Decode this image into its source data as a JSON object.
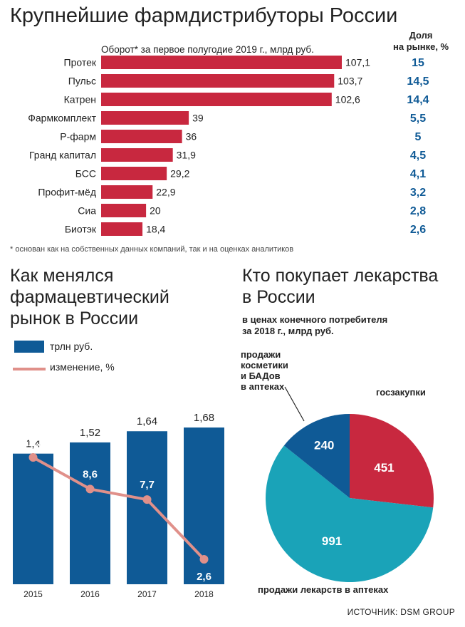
{
  "header": {
    "title": "Крупнейшие фармдистрибуторы России",
    "subtitle": "Оборот* за первое полугодие 2019 г., млрд руб.",
    "share_heading_line1": "Доля",
    "share_heading_line2": "на рынке, %",
    "footnote": "* основан как на собственных данных компаний, так и на оценках аналитиков"
  },
  "market_section": {
    "title_line1": "Как менялся",
    "title_line2": "фармацевтический",
    "title_line3": "рынок в России",
    "legend_bar": "трлн руб.",
    "legend_line": "изменение, %"
  },
  "buyers_section": {
    "title_line1": "Кто покупает лекарства",
    "title_line2": "в России",
    "subtitle_line1": "в ценах конечного потребителя",
    "subtitle_line2": "за 2018 г., млрд руб."
  },
  "source": "ИСТОЧНИК: DSM GROUP",
  "colors": {
    "red": "#c8283f",
    "blue": "#0f5a96",
    "teal": "#1aa3b8",
    "line": "#e0908a",
    "share_text": "#0f5a96"
  },
  "chart_data": [
    {
      "type": "bar",
      "orientation": "horizontal",
      "title": "Крупнейшие фармдистрибуторы России",
      "subtitle": "Оборот* за первое полугодие 2019 г., млрд руб.",
      "categories": [
        "Протек",
        "Пульс",
        "Катрен",
        "Фармкомплект",
        "Р-фарм",
        "Гранд капитал",
        "БСС",
        "Профит-мёд",
        "Сиа",
        "Биотэк"
      ],
      "values": [
        107.1,
        103.7,
        102.6,
        39,
        36,
        31.9,
        29.2,
        22.9,
        20,
        18.4
      ],
      "value_labels": [
        "107,1",
        "103,7",
        "102,6",
        "39",
        "36",
        "31,9",
        "29,2",
        "22,9",
        "20",
        "18,4"
      ],
      "market_share_labels": [
        "15",
        "14,5",
        "14,4",
        "5,5",
        "5",
        "4,5",
        "4,1",
        "3,2",
        "2,8",
        "2,6"
      ],
      "market_share_values": [
        15,
        14.5,
        14.4,
        5.5,
        5,
        4.5,
        4.1,
        3.2,
        2.8,
        2.6
      ],
      "grid": false
    },
    {
      "type": "bar",
      "title": "Как менялся фармацевтический рынок в России",
      "categories": [
        "2015",
        "2016",
        "2017",
        "2018"
      ],
      "series": [
        {
          "name": "трлн руб.",
          "type": "bar",
          "values": [
            1.4,
            1.52,
            1.64,
            1.68
          ],
          "labels": [
            "1,4",
            "1,52",
            "1,64",
            "1,68"
          ]
        },
        {
          "name": "изменение, %",
          "type": "line",
          "values": [
            11.3,
            8.6,
            7.7,
            2.6
          ],
          "labels": [
            "11,3",
            "8,6",
            "7,7",
            "2,6"
          ]
        }
      ],
      "legend": "top-left",
      "grid": false
    },
    {
      "type": "pie",
      "title": "Кто покупает лекарства в России",
      "subtitle": "в ценах конечного потребителя за 2018 г., млрд руб.",
      "slices": [
        {
          "label": "госзакупки",
          "value": 451,
          "value_label": "451",
          "color": "#c8283f"
        },
        {
          "label": "продажи лекарств в аптеках",
          "value": 991,
          "value_label": "991",
          "color": "#1aa3b8"
        },
        {
          "label": "продажи косметики и БАДов в аптеках",
          "value": 240,
          "value_label": "240",
          "color": "#0f5a96"
        }
      ],
      "cosmetics_label_lines": [
        "продажи",
        "косметики",
        "и БАДов",
        "в аптеках"
      ]
    }
  ]
}
